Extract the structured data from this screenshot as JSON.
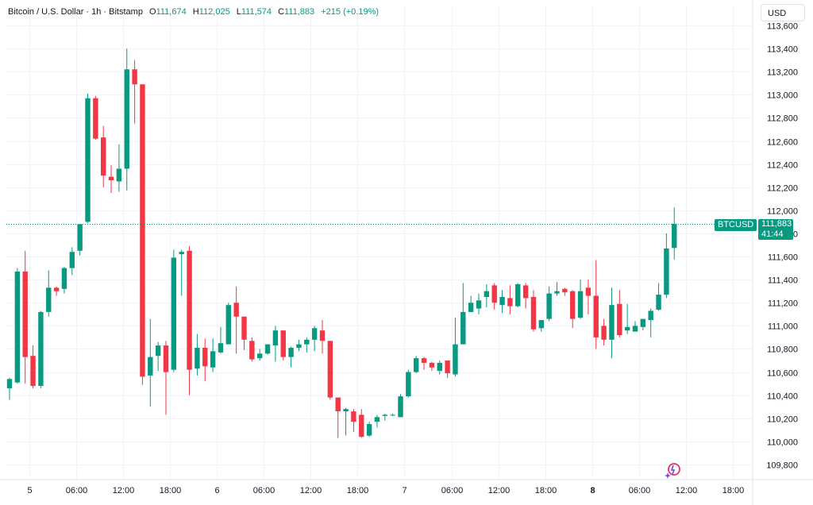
{
  "header": {
    "symbol": "Bitcoin / U.S. Dollar · 1h · Bitstamp",
    "open_label": "O",
    "open": "111,674",
    "high_label": "H",
    "high": "112,025",
    "low_label": "L",
    "low": "111,574",
    "close_label": "C",
    "close": "111,883",
    "change": "+215 (+0.19%)"
  },
  "currency_button": "USD",
  "price_tag": {
    "symbol": "BTCUSD",
    "price": "111,883",
    "countdown": "41:44"
  },
  "colors": {
    "up": "#089981",
    "down": "#f23645",
    "grid": "#f0f3fa",
    "text": "#131722"
  },
  "chart_data": {
    "type": "candlestick",
    "interval": "1h",
    "y_ticks": [
      113600,
      113400,
      113200,
      113000,
      112800,
      112600,
      112400,
      112200,
      112000,
      111800,
      111600,
      111400,
      111200,
      111000,
      110800,
      110600,
      110400,
      110200,
      110000,
      109800
    ],
    "y_tick_labels": [
      "113,600",
      "113,400",
      "113,200",
      "113,000",
      "112,800",
      "112,600",
      "112,400",
      "112,200",
      "112,000",
      "111,800",
      "111,600",
      "111,400",
      "111,200",
      "111,000",
      "110,800",
      "110,600",
      "110,400",
      "110,200",
      "110,000",
      "109,800"
    ],
    "ylim": [
      109680,
      113680
    ],
    "x_ticks": [
      {
        "label": "5",
        "index": 2.5,
        "bold": false
      },
      {
        "label": "06:00",
        "index": 8.5,
        "bold": false
      },
      {
        "label": "12:00",
        "index": 14.5,
        "bold": false
      },
      {
        "label": "18:00",
        "index": 20.5,
        "bold": false
      },
      {
        "label": "6",
        "index": 26.5,
        "bold": false
      },
      {
        "label": "06:00",
        "index": 32.5,
        "bold": false
      },
      {
        "label": "12:00",
        "index": 38.5,
        "bold": false
      },
      {
        "label": "18:00",
        "index": 44.5,
        "bold": false
      },
      {
        "label": "7",
        "index": 50.5,
        "bold": false
      },
      {
        "label": "06:00",
        "index": 56.5,
        "bold": false
      },
      {
        "label": "12:00",
        "index": 62.5,
        "bold": false
      },
      {
        "label": "18:00",
        "index": 68.5,
        "bold": false
      },
      {
        "label": "8",
        "index": 74.5,
        "bold": true
      },
      {
        "label": "06:00",
        "index": 80.5,
        "bold": false
      },
      {
        "label": "12:00",
        "index": 86.5,
        "bold": false
      },
      {
        "label": "18:00",
        "index": 92.5,
        "bold": false
      }
    ],
    "last_price": 111883,
    "candles": [
      [
        110460,
        110540,
        110360,
        110550
      ],
      [
        110510,
        111470,
        110500,
        111500
      ],
      [
        111470,
        110730,
        110500,
        111650
      ],
      [
        110740,
        110480,
        110460,
        110830
      ],
      [
        110480,
        111120,
        110460,
        111130
      ],
      [
        111120,
        111330,
        111080,
        111480
      ],
      [
        111330,
        111300,
        111260,
        111340
      ],
      [
        111320,
        111500,
        111280,
        111510
      ],
      [
        111500,
        111640,
        111440,
        111680
      ],
      [
        111650,
        111880,
        111610,
        111880
      ],
      [
        111900,
        112970,
        111890,
        113010
      ],
      [
        112970,
        112620,
        112610,
        112990
      ],
      [
        112630,
        112300,
        112200,
        112730
      ],
      [
        112290,
        112260,
        112150,
        112390
      ],
      [
        112250,
        112360,
        112160,
        112570
      ],
      [
        112360,
        113220,
        112170,
        113400
      ],
      [
        113220,
        113090,
        112750,
        113300
      ],
      [
        113090,
        110560,
        110490,
        113090
      ],
      [
        110570,
        110730,
        110300,
        111060
      ],
      [
        110740,
        110830,
        110610,
        110860
      ],
      [
        110830,
        110600,
        110230,
        110870
      ],
      [
        110620,
        111590,
        110600,
        111660
      ],
      [
        111620,
        111640,
        111260,
        111660
      ],
      [
        111650,
        110620,
        110400,
        111690
      ],
      [
        110630,
        110810,
        110570,
        110930
      ],
      [
        110810,
        110650,
        110520,
        110890
      ],
      [
        110640,
        110780,
        110600,
        110890
      ],
      [
        110770,
        110850,
        110760,
        110990
      ],
      [
        110840,
        111180,
        110840,
        111200
      ],
      [
        111200,
        111080,
        110760,
        111340
      ],
      [
        111080,
        110880,
        110790,
        111080
      ],
      [
        110870,
        110710,
        110690,
        110900
      ],
      [
        110720,
        110760,
        110700,
        110800
      ],
      [
        110760,
        110840,
        110750,
        110840
      ],
      [
        110830,
        110960,
        110690,
        111000
      ],
      [
        110960,
        110730,
        110700,
        110960
      ],
      [
        110730,
        110810,
        110640,
        110820
      ],
      [
        110810,
        110840,
        110780,
        110880
      ],
      [
        110840,
        110880,
        110770,
        110900
      ],
      [
        110880,
        110980,
        110780,
        111000
      ],
      [
        110960,
        110870,
        110760,
        111050
      ],
      [
        110870,
        110380,
        110360,
        110870
      ],
      [
        110380,
        110260,
        110030,
        110380
      ],
      [
        110260,
        110280,
        110050,
        110290
      ],
      [
        110260,
        110170,
        110080,
        110280
      ],
      [
        110230,
        110040,
        110030,
        110280
      ],
      [
        110050,
        110150,
        110040,
        110170
      ],
      [
        110170,
        110210,
        110120,
        110230
      ],
      [
        110220,
        110230,
        110180,
        110240
      ],
      [
        110230,
        110230,
        110220,
        110240
      ],
      [
        110210,
        110390,
        110210,
        110410
      ],
      [
        110390,
        110600,
        110380,
        110620
      ],
      [
        110600,
        110720,
        110590,
        110740
      ],
      [
        110720,
        110680,
        110620,
        110730
      ],
      [
        110680,
        110640,
        110610,
        110690
      ],
      [
        110610,
        110680,
        110580,
        110700
      ],
      [
        110700,
        110590,
        110550,
        110700
      ],
      [
        110580,
        110840,
        110560,
        111070
      ],
      [
        110840,
        111120,
        110840,
        111370
      ],
      [
        111120,
        111200,
        111120,
        111260
      ],
      [
        111150,
        111220,
        111100,
        111280
      ],
      [
        111250,
        111300,
        111160,
        111360
      ],
      [
        111350,
        111200,
        111140,
        111370
      ],
      [
        111180,
        111250,
        111110,
        111310
      ],
      [
        111240,
        111170,
        111100,
        111350
      ],
      [
        111170,
        111360,
        111160,
        111370
      ],
      [
        111350,
        111240,
        111150,
        111370
      ],
      [
        111250,
        110970,
        110950,
        111310
      ],
      [
        110980,
        111050,
        110950,
        111050
      ],
      [
        111060,
        111280,
        111040,
        111340
      ],
      [
        111280,
        111300,
        111260,
        111380
      ],
      [
        111320,
        111290,
        111260,
        111330
      ],
      [
        111300,
        111060,
        110980,
        111310
      ],
      [
        111070,
        111300,
        111060,
        111400
      ],
      [
        111330,
        111260,
        111100,
        111400
      ],
      [
        111260,
        110900,
        110800,
        111570
      ],
      [
        111000,
        110880,
        110830,
        111060
      ],
      [
        110880,
        111180,
        110720,
        111330
      ],
      [
        111190,
        110920,
        110900,
        111310
      ],
      [
        110960,
        110990,
        110930,
        111190
      ],
      [
        110950,
        111000,
        110960,
        111040
      ],
      [
        110990,
        111060,
        110960,
        111060
      ],
      [
        111050,
        111130,
        110900,
        111150
      ],
      [
        111140,
        111270,
        111130,
        111370
      ],
      [
        111270,
        111670,
        111240,
        111800
      ],
      [
        111674,
        111883,
        111574,
        112025
      ]
    ]
  }
}
